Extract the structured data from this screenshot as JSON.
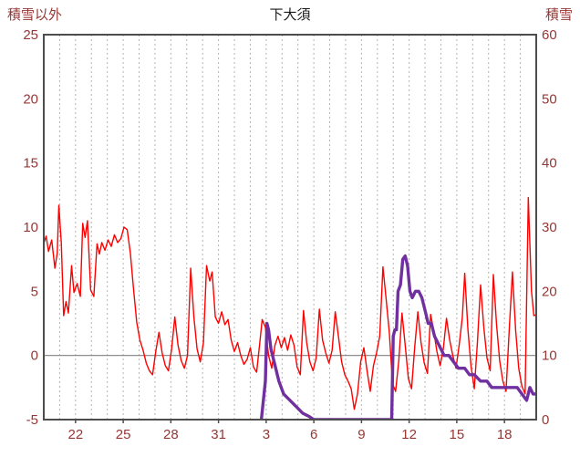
{
  "page": {
    "background": "#ffffff"
  },
  "chart_data": {
    "type": "line",
    "title": "下大須",
    "left_axis": {
      "label": "積雪以外",
      "min": -5,
      "max": 25,
      "ticks": [
        25,
        20,
        15,
        10,
        5,
        0,
        -5
      ]
    },
    "right_axis": {
      "label": "積雪",
      "min": 0,
      "max": 60,
      "ticks": [
        60,
        50,
        40,
        30,
        20,
        10,
        0
      ]
    },
    "x_axis": {
      "min": 0,
      "max": 31,
      "grid_step": 1,
      "tick_positions": [
        2,
        5,
        8,
        11,
        14,
        17,
        20,
        23,
        26,
        29
      ],
      "tick_labels": [
        "22",
        "25",
        "28",
        "31",
        "3",
        "6",
        "9",
        "12",
        "15",
        "18"
      ]
    },
    "zero_line_left_value": 0,
    "colors": {
      "grid": "#b3b3b3",
      "border": "#4d4d4d",
      "zero_line": "#808080",
      "tick_text": "#953735",
      "title_text": "#1a1a1a"
    },
    "series": [
      {
        "name": "積雪以外",
        "axis": "left",
        "color": "#ff0000",
        "line_width": 1.4,
        "points": [
          [
            0,
            8.7
          ],
          [
            0.15,
            9.3
          ],
          [
            0.3,
            8.1
          ],
          [
            0.5,
            9.0
          ],
          [
            0.7,
            6.8
          ],
          [
            0.85,
            8.0
          ],
          [
            0.95,
            11.7
          ],
          [
            1.1,
            8.8
          ],
          [
            1.25,
            3.1
          ],
          [
            1.4,
            4.2
          ],
          [
            1.55,
            3.3
          ],
          [
            1.75,
            7.0
          ],
          [
            1.9,
            4.9
          ],
          [
            2.1,
            5.6
          ],
          [
            2.3,
            4.6
          ],
          [
            2.45,
            10.3
          ],
          [
            2.6,
            9.2
          ],
          [
            2.75,
            10.5
          ],
          [
            2.95,
            5.1
          ],
          [
            3.15,
            4.6
          ],
          [
            3.35,
            8.7
          ],
          [
            3.5,
            7.9
          ],
          [
            3.65,
            8.8
          ],
          [
            3.85,
            8.2
          ],
          [
            4.05,
            9.0
          ],
          [
            4.25,
            8.5
          ],
          [
            4.45,
            9.4
          ],
          [
            4.65,
            8.8
          ],
          [
            4.85,
            9.1
          ],
          [
            5.05,
            10.0
          ],
          [
            5.25,
            9.8
          ],
          [
            5.45,
            8.0
          ],
          [
            5.65,
            5.2
          ],
          [
            5.85,
            2.6
          ],
          [
            6.05,
            1.2
          ],
          [
            6.25,
            0.4
          ],
          [
            6.45,
            -0.6
          ],
          [
            6.65,
            -1.2
          ],
          [
            6.85,
            -1.5
          ],
          [
            7.05,
            0.3
          ],
          [
            7.25,
            1.8
          ],
          [
            7.45,
            0.2
          ],
          [
            7.65,
            -0.8
          ],
          [
            7.85,
            -1.2
          ],
          [
            8.05,
            0.5
          ],
          [
            8.25,
            3.0
          ],
          [
            8.45,
            0.8
          ],
          [
            8.65,
            -0.4
          ],
          [
            8.85,
            -1.0
          ],
          [
            9.05,
            0.0
          ],
          [
            9.25,
            6.8
          ],
          [
            9.45,
            3.0
          ],
          [
            9.65,
            0.5
          ],
          [
            9.85,
            -0.5
          ],
          [
            10.05,
            1.0
          ],
          [
            10.25,
            7.0
          ],
          [
            10.45,
            5.8
          ],
          [
            10.6,
            6.5
          ],
          [
            10.8,
            3.0
          ],
          [
            11.0,
            2.5
          ],
          [
            11.2,
            3.4
          ],
          [
            11.4,
            2.4
          ],
          [
            11.6,
            2.8
          ],
          [
            11.8,
            1.2
          ],
          [
            12.0,
            0.3
          ],
          [
            12.2,
            1.0
          ],
          [
            12.4,
            0.0
          ],
          [
            12.6,
            -0.7
          ],
          [
            12.8,
            -0.3
          ],
          [
            13.0,
            0.6
          ],
          [
            13.2,
            -0.9
          ],
          [
            13.4,
            -1.3
          ],
          [
            13.6,
            1.0
          ],
          [
            13.75,
            2.8
          ],
          [
            13.95,
            2.2
          ],
          [
            14.15,
            0.0
          ],
          [
            14.35,
            -1.0
          ],
          [
            14.55,
            0.8
          ],
          [
            14.75,
            1.5
          ],
          [
            14.95,
            0.6
          ],
          [
            15.15,
            1.4
          ],
          [
            15.35,
            0.4
          ],
          [
            15.55,
            1.6
          ],
          [
            15.75,
            0.8
          ],
          [
            15.95,
            -0.9
          ],
          [
            16.15,
            -1.5
          ],
          [
            16.35,
            3.5
          ],
          [
            16.55,
            1.0
          ],
          [
            16.75,
            -0.5
          ],
          [
            16.95,
            -1.2
          ],
          [
            17.15,
            -0.2
          ],
          [
            17.35,
            3.6
          ],
          [
            17.55,
            1.2
          ],
          [
            17.75,
            0.2
          ],
          [
            17.95,
            -0.6
          ],
          [
            18.15,
            0.4
          ],
          [
            18.35,
            3.4
          ],
          [
            18.55,
            1.5
          ],
          [
            18.75,
            -0.5
          ],
          [
            18.95,
            -1.5
          ],
          [
            19.15,
            -2.0
          ],
          [
            19.35,
            -2.6
          ],
          [
            19.55,
            -4.2
          ],
          [
            19.75,
            -3.0
          ],
          [
            19.95,
            -0.5
          ],
          [
            20.15,
            0.6
          ],
          [
            20.35,
            -1.2
          ],
          [
            20.55,
            -2.8
          ],
          [
            20.75,
            -0.8
          ],
          [
            20.95,
            0.2
          ],
          [
            21.15,
            1.5
          ],
          [
            21.35,
            6.9
          ],
          [
            21.55,
            4.4
          ],
          [
            21.75,
            1.8
          ],
          [
            21.95,
            -2.2
          ],
          [
            22.15,
            -2.8
          ],
          [
            22.35,
            -0.4
          ],
          [
            22.55,
            3.3
          ],
          [
            22.75,
            0.8
          ],
          [
            22.95,
            -1.8
          ],
          [
            23.15,
            -2.6
          ],
          [
            23.35,
            0.6
          ],
          [
            23.55,
            3.4
          ],
          [
            23.75,
            1.0
          ],
          [
            23.95,
            -0.6
          ],
          [
            24.15,
            -1.4
          ],
          [
            24.35,
            3.2
          ],
          [
            24.55,
            1.9
          ],
          [
            24.75,
            0.3
          ],
          [
            24.95,
            -0.8
          ],
          [
            25.15,
            0.5
          ],
          [
            25.35,
            2.9
          ],
          [
            25.55,
            1.2
          ],
          [
            25.75,
            0.0
          ],
          [
            25.95,
            -1.0
          ],
          [
            26.15,
            0.8
          ],
          [
            26.35,
            3.0
          ],
          [
            26.5,
            6.4
          ],
          [
            26.7,
            2.0
          ],
          [
            26.9,
            -0.9
          ],
          [
            27.1,
            -2.6
          ],
          [
            27.3,
            1.0
          ],
          [
            27.5,
            5.5
          ],
          [
            27.7,
            2.2
          ],
          [
            27.9,
            -0.2
          ],
          [
            28.1,
            -1.2
          ],
          [
            28.3,
            6.3
          ],
          [
            28.5,
            2.4
          ],
          [
            28.7,
            -0.4
          ],
          [
            28.9,
            -2.0
          ],
          [
            29.1,
            -2.8
          ],
          [
            29.3,
            2.0
          ],
          [
            29.5,
            6.5
          ],
          [
            29.7,
            2.0
          ],
          [
            29.9,
            -1.0
          ],
          [
            30.1,
            -2.4
          ],
          [
            30.3,
            -3.0
          ],
          [
            30.5,
            12.3
          ],
          [
            30.7,
            5.0
          ],
          [
            30.85,
            3.1
          ],
          [
            31,
            3.2
          ]
        ]
      },
      {
        "name": "積雪",
        "axis": "right",
        "color": "#7030a0",
        "line_width": 3.4,
        "points": [
          [
            13.7,
            0
          ],
          [
            13.95,
            6
          ],
          [
            14.05,
            15
          ],
          [
            14.15,
            14
          ],
          [
            14.3,
            11
          ],
          [
            14.5,
            9
          ],
          [
            14.8,
            6
          ],
          [
            15.1,
            4
          ],
          [
            15.5,
            3
          ],
          [
            15.9,
            2
          ],
          [
            16.3,
            1
          ],
          [
            16.7,
            0.5
          ],
          [
            17.0,
            0
          ],
          [
            18.0,
            0
          ],
          [
            19.0,
            0
          ],
          [
            20.0,
            0
          ],
          [
            21.0,
            0
          ],
          [
            21.9,
            0
          ],
          [
            22.0,
            13
          ],
          [
            22.1,
            14
          ],
          [
            22.2,
            14
          ],
          [
            22.3,
            20
          ],
          [
            22.45,
            21
          ],
          [
            22.6,
            25
          ],
          [
            22.75,
            25.5
          ],
          [
            22.9,
            24
          ],
          [
            23.05,
            20
          ],
          [
            23.2,
            19
          ],
          [
            23.4,
            20
          ],
          [
            23.6,
            20
          ],
          [
            23.8,
            19
          ],
          [
            24.0,
            17
          ],
          [
            24.2,
            15
          ],
          [
            24.4,
            15
          ],
          [
            24.6,
            13
          ],
          [
            24.8,
            12
          ],
          [
            25.0,
            11
          ],
          [
            25.2,
            10
          ],
          [
            25.5,
            10
          ],
          [
            25.8,
            9
          ],
          [
            26.1,
            8
          ],
          [
            26.5,
            8
          ],
          [
            26.8,
            7
          ],
          [
            27.1,
            7
          ],
          [
            27.5,
            6
          ],
          [
            27.9,
            6
          ],
          [
            28.2,
            5
          ],
          [
            28.6,
            5
          ],
          [
            29.0,
            5
          ],
          [
            29.4,
            5
          ],
          [
            29.8,
            5
          ],
          [
            30.1,
            4
          ],
          [
            30.4,
            3
          ],
          [
            30.6,
            5
          ],
          [
            30.8,
            4
          ],
          [
            31,
            4
          ]
        ]
      }
    ]
  }
}
